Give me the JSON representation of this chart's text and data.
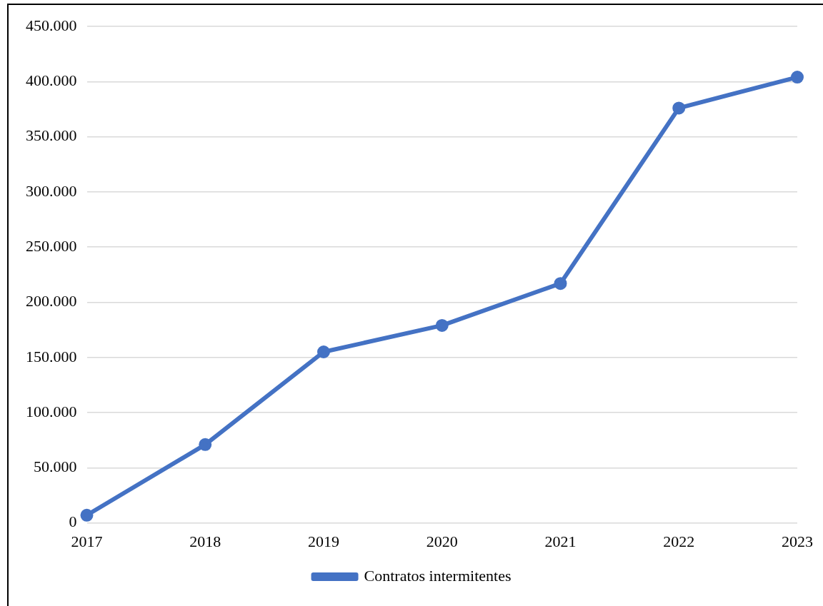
{
  "chart_data": {
    "type": "line",
    "categories": [
      "2017",
      "2018",
      "2019",
      "2020",
      "2021",
      "2022",
      "2023"
    ],
    "series": [
      {
        "name": "Contratos intermitentes",
        "color": "#4472c4",
        "values": [
          7000,
          71000,
          155000,
          179000,
          217000,
          376000,
          404000
        ]
      }
    ],
    "ylim": [
      0,
      450000
    ],
    "yticks": [
      {
        "value": 0,
        "label": "0"
      },
      {
        "value": 50000,
        "label": "50.000"
      },
      {
        "value": 100000,
        "label": "100.000"
      },
      {
        "value": 150000,
        "label": "150.000"
      },
      {
        "value": 200000,
        "label": "200.000"
      },
      {
        "value": 250000,
        "label": "250.000"
      },
      {
        "value": 300000,
        "label": "300.000"
      },
      {
        "value": 350000,
        "label": "350.000"
      },
      {
        "value": 400000,
        "label": "400.000"
      },
      {
        "value": 450000,
        "label": "450.000"
      }
    ],
    "grid": "y",
    "legend": "bottom",
    "marker": "circle",
    "line_style": "solid"
  }
}
